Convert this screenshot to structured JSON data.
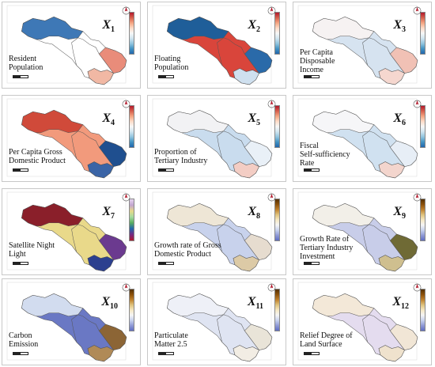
{
  "panels": [
    {
      "id": "X1",
      "label_lines": [
        "Resident",
        "Population"
      ],
      "sub": "1",
      "palette": "div",
      "north": "#3e78b6",
      "south": "#f1b8a4",
      "east": "#e98c7a",
      "accent": "#ffffff"
    },
    {
      "id": "X2",
      "label_lines": [
        "Floating",
        "Population"
      ],
      "sub": "2",
      "palette": "div",
      "north": "#1f5e99",
      "south": "#cfe0ef",
      "east": "#2a6aa9",
      "accent": "#d9453b"
    },
    {
      "id": "X3",
      "label_lines": [
        "Per Capita",
        "Disposable",
        "Income"
      ],
      "sub": "3",
      "palette": "div",
      "north": "#f6f2f2",
      "south": "#f5d7cf",
      "east": "#f1c1b5",
      "accent": "#d6e3f0"
    },
    {
      "id": "X4",
      "label_lines": [
        "Per Capita Gross",
        "Domestic Product"
      ],
      "sub": "4",
      "palette": "div",
      "north": "#d04a3a",
      "south": "#3a64a6",
      "east": "#1f4f8f",
      "accent": "#f29a7c"
    },
    {
      "id": "X5",
      "label_lines": [
        "Proportion of",
        "Tertiary Industry"
      ],
      "sub": "5",
      "palette": "div",
      "north": "#f2f2f4",
      "south": "#f3cdc4",
      "east": "#e9f0f7",
      "accent": "#c9dcee"
    },
    {
      "id": "X6",
      "label_lines": [
        "Fiscal",
        "Self-sufficiency",
        "Rate"
      ],
      "sub": "6",
      "palette": "div",
      "north": "#f6f6f8",
      "south": "#f3d5cd",
      "east": "#e7eef6",
      "accent": "#d0e1f0"
    },
    {
      "id": "X7",
      "label_lines": [
        "Satellite Night",
        "Light"
      ],
      "sub": "7",
      "palette": "cat",
      "north": "#8a1f2a",
      "south": "#2b3f8f",
      "east": "#6b3a8f",
      "accent": "#e9d98a"
    },
    {
      "id": "X8",
      "label_lines": [
        "Growth rate of Gross",
        "Domestic Product"
      ],
      "sub": "8",
      "palette": "brown",
      "north": "#eee6d6",
      "south": "#dccaa6",
      "east": "#e6dccf",
      "accent": "#c8d2ec"
    },
    {
      "id": "X9",
      "label_lines": [
        "Growth Rate of",
        "Tertiary Industry",
        "Investment"
      ],
      "sub": "9",
      "palette": "brown",
      "north": "#f2efe8",
      "south": "#cfbf8f",
      "east": "#6f6a35",
      "accent": "#c8cde9"
    },
    {
      "id": "X10",
      "label_lines": [
        "Carbon",
        "Emission"
      ],
      "sub": "10",
      "palette": "brown",
      "north": "#d2dcef",
      "south": "#b08a57",
      "east": "#8c6535",
      "accent": "#6a78c4"
    },
    {
      "id": "X11",
      "label_lines": [
        "Particulate",
        "Matter 2.5"
      ],
      "sub": "11",
      "palette": "brown",
      "north": "#eef0f7",
      "south": "#f2ede4",
      "east": "#e9e4d8",
      "accent": "#dfe4f2"
    },
    {
      "id": "X12",
      "label_lines": [
        "Relief Degree of",
        "Land Surface"
      ],
      "sub": "12",
      "palette": "brown",
      "north": "#f3e8d8",
      "south": "#efe2cd",
      "east": "#f1e6d6",
      "accent": "#e4dcef"
    }
  ],
  "xsymbol": "X"
}
